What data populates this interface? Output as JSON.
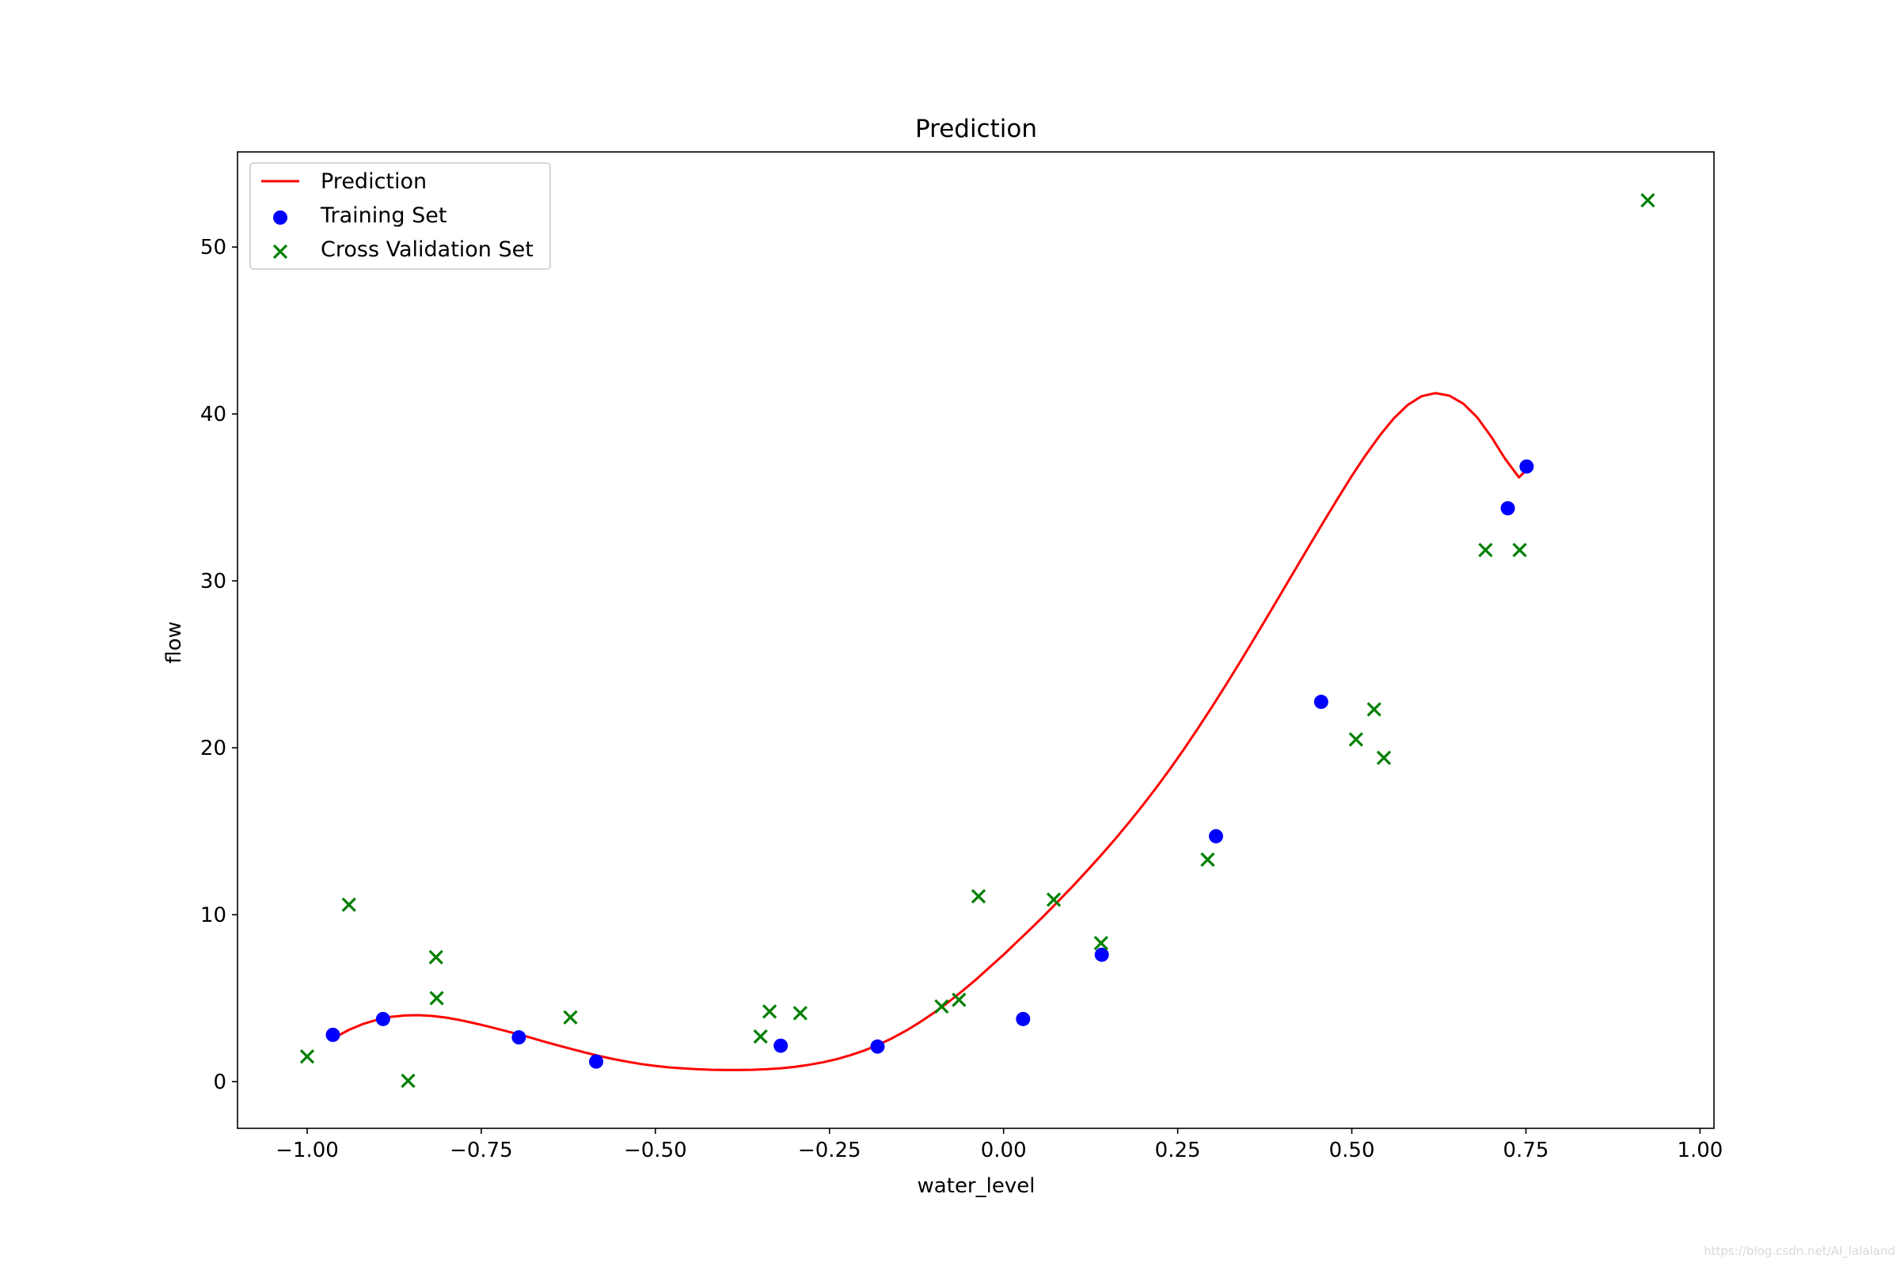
{
  "chart_data": {
    "type": "scatter",
    "title": "Prediction",
    "xlabel": "water_level",
    "ylabel": "flow",
    "xlim": [
      -1.1,
      1.02
    ],
    "ylim": [
      -2.8,
      55.7
    ],
    "xticks": [
      -1.0,
      -0.75,
      -0.5,
      -0.25,
      0.0,
      0.25,
      0.5,
      0.75,
      1.0
    ],
    "xtick_labels": [
      "−1.00",
      "−0.75",
      "−0.50",
      "−0.25",
      "0.00",
      "0.25",
      "0.50",
      "0.75",
      "1.00"
    ],
    "yticks": [
      0,
      10,
      20,
      30,
      40,
      50
    ],
    "ytick_labels": [
      "0",
      "10",
      "20",
      "30",
      "40",
      "50"
    ],
    "grid": false,
    "legend_position": "top-left",
    "series": [
      {
        "name": "Prediction",
        "kind": "line",
        "color": "#ff0000",
        "x": [
          -0.962,
          -0.94,
          -0.92,
          -0.9,
          -0.88,
          -0.86,
          -0.84,
          -0.82,
          -0.8,
          -0.78,
          -0.76,
          -0.74,
          -0.72,
          -0.7,
          -0.68,
          -0.66,
          -0.64,
          -0.62,
          -0.6,
          -0.58,
          -0.56,
          -0.54,
          -0.52,
          -0.5,
          -0.48,
          -0.46,
          -0.44,
          -0.42,
          -0.4,
          -0.38,
          -0.36,
          -0.34,
          -0.32,
          -0.3,
          -0.28,
          -0.26,
          -0.24,
          -0.22,
          -0.2,
          -0.18,
          -0.16,
          -0.14,
          -0.12,
          -0.1,
          -0.08,
          -0.06,
          -0.04,
          -0.02,
          0.0,
          0.02,
          0.04,
          0.06,
          0.08,
          0.1,
          0.12,
          0.14,
          0.16,
          0.18,
          0.2,
          0.22,
          0.24,
          0.26,
          0.28,
          0.3,
          0.32,
          0.34,
          0.36,
          0.38,
          0.4,
          0.42,
          0.44,
          0.46,
          0.48,
          0.5,
          0.52,
          0.54,
          0.56,
          0.58,
          0.6,
          0.62,
          0.64,
          0.66,
          0.68,
          0.7,
          0.72,
          0.74,
          0.752
        ],
        "y": [
          2.6,
          3.1,
          3.45,
          3.7,
          3.88,
          3.96,
          3.98,
          3.93,
          3.83,
          3.68,
          3.5,
          3.3,
          3.09,
          2.87,
          2.64,
          2.4,
          2.17,
          1.95,
          1.73,
          1.53,
          1.35,
          1.19,
          1.05,
          0.94,
          0.85,
          0.79,
          0.74,
          0.71,
          0.7,
          0.7,
          0.71,
          0.74,
          0.8,
          0.88,
          1.0,
          1.15,
          1.34,
          1.58,
          1.86,
          2.2,
          2.6,
          3.05,
          3.56,
          4.12,
          4.74,
          5.4,
          6.1,
          6.85,
          7.6,
          8.4,
          9.2,
          10.02,
          10.87,
          11.74,
          12.64,
          13.56,
          14.52,
          15.52,
          16.56,
          17.65,
          18.79,
          19.98,
          21.22,
          22.5,
          23.82,
          25.17,
          26.55,
          27.95,
          29.36,
          30.77,
          32.18,
          33.58,
          34.95,
          36.28,
          37.54,
          38.7,
          39.72,
          40.53,
          41.06,
          41.25,
          41.1,
          40.62,
          39.8,
          38.65,
          37.32,
          36.2,
          36.7
        ]
      },
      {
        "name": "Training Set",
        "kind": "scatter",
        "marker": "o",
        "color": "#0000ff",
        "x": [
          -0.963,
          -0.891,
          -0.696,
          -0.585,
          -0.32,
          -0.181,
          0.028,
          0.141,
          0.305,
          0.456,
          0.724,
          0.751
        ],
        "y": [
          2.8,
          3.75,
          2.65,
          1.2,
          2.15,
          2.1,
          3.75,
          7.6,
          14.7,
          22.75,
          34.35,
          36.85
        ]
      },
      {
        "name": "Cross Validation Set",
        "kind": "scatter",
        "marker": "x",
        "color": "#008000",
        "x": [
          -1.0,
          -0.94,
          -0.855,
          -0.815,
          -0.814,
          -0.622,
          -0.349,
          -0.336,
          -0.292,
          -0.089,
          -0.064,
          -0.036,
          0.072,
          0.14,
          0.293,
          0.506,
          0.532,
          0.546,
          0.692,
          0.741,
          0.925
        ],
        "y": [
          1.5,
          10.6,
          0.05,
          7.45,
          5.0,
          3.85,
          2.7,
          4.2,
          4.1,
          4.5,
          4.9,
          11.1,
          10.9,
          8.3,
          13.3,
          20.5,
          22.3,
          19.4,
          31.85,
          31.85,
          52.8
        ]
      }
    ]
  },
  "watermark": "https://blog.csdn.net/AI_lalaland"
}
